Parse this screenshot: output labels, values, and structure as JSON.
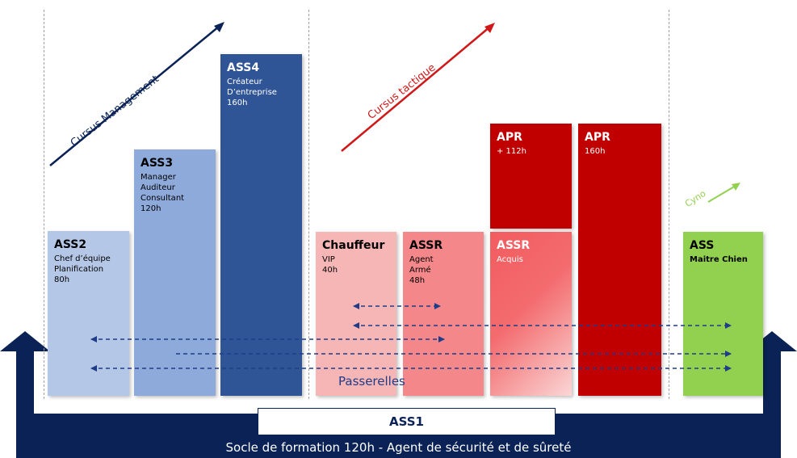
{
  "tracks": {
    "management": "Cursus Management",
    "tactique": "Cursus tactique",
    "cyno": "Cyno"
  },
  "bars": {
    "ass2": {
      "title": "ASS2",
      "desc": "Chef d’équipe\nPlanification\n80h"
    },
    "ass3": {
      "title": "ASS3",
      "desc": "Manager\nAuditeur\nConsultant\n120h"
    },
    "ass4": {
      "title": "ASS4",
      "desc": "Créateur\nD’entreprise\n160h"
    },
    "chauffeur": {
      "title": "Chauffeur",
      "desc": "VIP\n40h"
    },
    "assr_arme": {
      "title": "ASSR",
      "desc": "Agent\nArmé\n48h"
    },
    "assr_acquis": {
      "title": "ASSR",
      "desc": "Acquis"
    },
    "apr_112": {
      "title": "APR",
      "desc": "+ 112h"
    },
    "apr_160": {
      "title": "APR",
      "desc": "160h"
    },
    "ass_cyno": {
      "title": "ASS",
      "desc": "Maitre Chien"
    }
  },
  "passerelles_label": "Passerelles",
  "base": {
    "title": "ASS1",
    "subtitle": "Socle de formation 120h - Agent de sécurité et de sûreté"
  },
  "colors": {
    "navy": "#0b2257",
    "ass2": "#b4c7e7",
    "ass3": "#8eaadb",
    "ass4": "#2f5597",
    "chauffeur": "#f7b6b6",
    "assr_arme": "#f4878a",
    "assr_acquis": "#f25c5f",
    "apr": "#c00000",
    "cyno": "#92d050",
    "tactique_arrow": "#d01818",
    "cyno_arrow": "#92d050"
  }
}
